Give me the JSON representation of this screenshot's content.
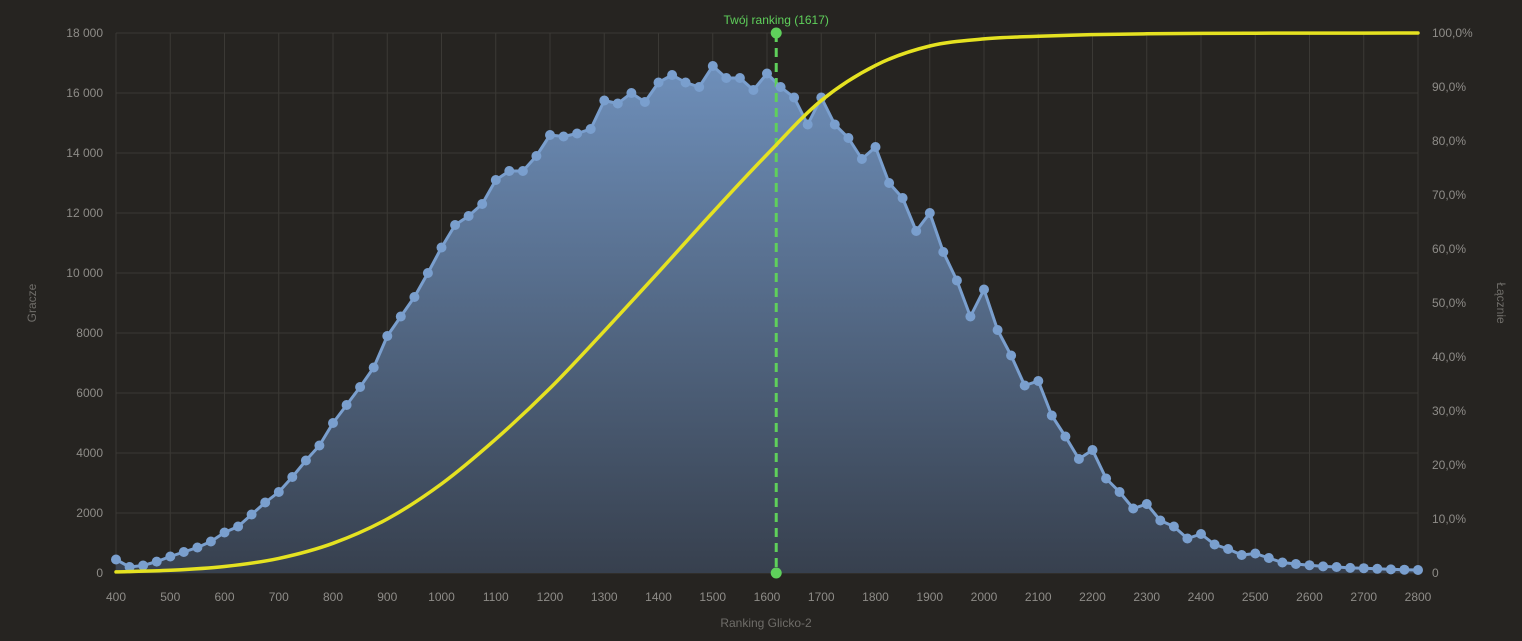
{
  "chart_data": {
    "type": "area",
    "title": "",
    "xlabel": "Ranking Glicko-2",
    "ylabel": "Gracze",
    "y2label": "Łącznie",
    "xlim": [
      400,
      2800
    ],
    "ylim": [
      0,
      18000
    ],
    "y2lim": [
      0,
      100
    ],
    "grid": true,
    "x_ticks": [
      "400",
      "500",
      "600",
      "700",
      "800",
      "900",
      "1000",
      "1100",
      "1200",
      "1300",
      "1400",
      "1500",
      "1600",
      "1700",
      "1800",
      "1900",
      "2000",
      "2100",
      "2200",
      "2300",
      "2400",
      "2500",
      "2600",
      "2700",
      "2800"
    ],
    "y_ticks": [
      "0",
      "2000",
      "4000",
      "6000",
      "8000",
      "10 000",
      "12 000",
      "14 000",
      "16 000",
      "18 000"
    ],
    "y2_ticks": [
      "0",
      "10,0%",
      "20,0%",
      "30,0%",
      "40,0%",
      "50,0%",
      "60,0%",
      "70,0%",
      "80,0%",
      "90,0%",
      "100,0%"
    ],
    "marker": {
      "label": "Twój ranking (1617)",
      "x": 1617,
      "color": "#5fd05b"
    },
    "series": [
      {
        "name": "Gracze",
        "color": "#7a9fce",
        "x": [
          400,
          425,
          450,
          475,
          500,
          525,
          550,
          575,
          600,
          625,
          650,
          675,
          700,
          725,
          750,
          775,
          800,
          825,
          850,
          875,
          900,
          925,
          950,
          975,
          1000,
          1025,
          1050,
          1075,
          1100,
          1125,
          1150,
          1175,
          1200,
          1225,
          1250,
          1275,
          1300,
          1325,
          1350,
          1375,
          1400,
          1425,
          1450,
          1475,
          1500,
          1525,
          1550,
          1575,
          1600,
          1625,
          1650,
          1675,
          1700,
          1725,
          1750,
          1775,
          1800,
          1825,
          1850,
          1875,
          1900,
          1925,
          1950,
          1975,
          2000,
          2025,
          2050,
          2075,
          2100,
          2125,
          2150,
          2175,
          2200,
          2225,
          2250,
          2275,
          2300,
          2325,
          2350,
          2375,
          2400,
          2425,
          2450,
          2475,
          2500,
          2525,
          2550,
          2575,
          2600,
          2625,
          2650,
          2675,
          2700,
          2725,
          2750,
          2775,
          2800
        ],
        "values": [
          450,
          200,
          250,
          380,
          550,
          700,
          850,
          1050,
          1350,
          1550,
          1950,
          2350,
          2700,
          3200,
          3750,
          4250,
          5000,
          5600,
          6200,
          6850,
          7900,
          8550,
          9200,
          10000,
          10850,
          11600,
          11900,
          12300,
          13100,
          13400,
          13400,
          13900,
          14600,
          14550,
          14650,
          14800,
          15750,
          15650,
          16000,
          15700,
          16350,
          16600,
          16350,
          16200,
          16900,
          16500,
          16500,
          16100,
          16650,
          16200,
          15850,
          14950,
          15850,
          14950,
          14500,
          13800,
          14200,
          13000,
          12500,
          11400,
          12000,
          10700,
          9750,
          8550,
          9450,
          8100,
          7250,
          6250,
          6400,
          5250,
          4550,
          3800,
          4100,
          3150,
          2700,
          2150,
          2300,
          1750,
          1550,
          1150,
          1300,
          950,
          800,
          600,
          650,
          500,
          350,
          300,
          260,
          220,
          200,
          170,
          160,
          140,
          120,
          110,
          100
        ]
      },
      {
        "name": "Łącznie",
        "color": "#e5e221",
        "x": [
          400,
          500,
          600,
          700,
          800,
          900,
          1000,
          1100,
          1200,
          1300,
          1400,
          1500,
          1600,
          1700,
          1800,
          1900,
          2000,
          2100,
          2200,
          2300,
          2400,
          2500,
          2600,
          2700,
          2800
        ],
        "values": [
          0.2,
          0.5,
          1.2,
          2.7,
          5.5,
          10.0,
          16.5,
          24.8,
          34.2,
          44.8,
          55.7,
          66.8,
          77.5,
          87.5,
          94.0,
          97.6,
          98.9,
          99.4,
          99.7,
          99.85,
          99.93,
          99.97,
          99.98,
          99.99,
          100
        ]
      }
    ]
  }
}
